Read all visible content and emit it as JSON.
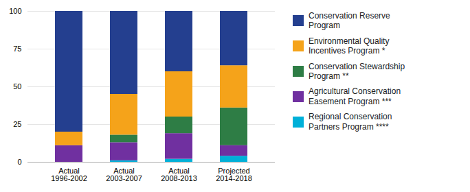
{
  "chart_data": {
    "type": "bar",
    "stacked": true,
    "categories": [
      "Actual\n1996-2002",
      "Actual\n2003-2007",
      "Actual\n2008-2013",
      "Projected\n2014-2018"
    ],
    "series": [
      {
        "name": "Regional Conservation\nPartners Program ****",
        "color": "#00b0d8",
        "values": [
          0,
          1,
          2,
          4
        ]
      },
      {
        "name": "Agricultural Conservation\nEasement Program ***",
        "color": "#7030a0",
        "values": [
          11,
          12,
          17,
          7
        ]
      },
      {
        "name": "Conservation Stewardship\nProgram **",
        "color": "#2e7d45",
        "values": [
          0,
          5,
          11,
          25
        ]
      },
      {
        "name": "Environmental Quality\nIncentives Program *",
        "color": "#f5a31a",
        "values": [
          9,
          27,
          30,
          28
        ]
      },
      {
        "name": "Conservation Reserve\nProgram",
        "color": "#243f8f",
        "values": [
          80,
          55,
          40,
          36
        ]
      }
    ],
    "ylim": [
      0,
      100
    ],
    "yticks": [
      0,
      25,
      50,
      75,
      100
    ],
    "grid": true,
    "legend": "right"
  }
}
